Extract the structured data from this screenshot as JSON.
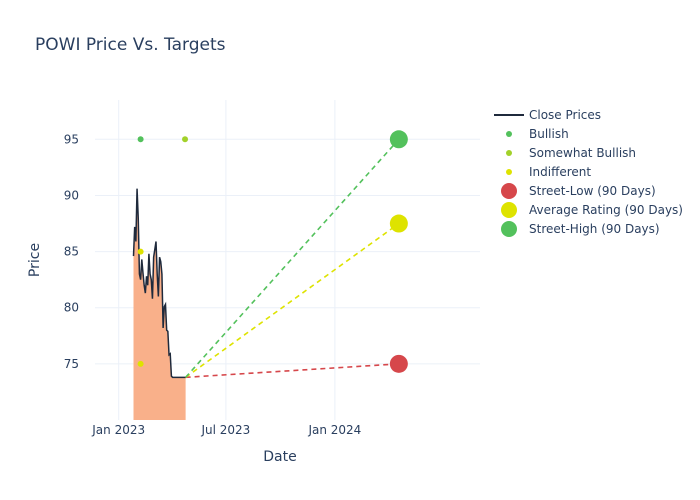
{
  "chart_data": {
    "type": "line",
    "title": "POWI Price Vs. Targets",
    "xlabel": "Date",
    "ylabel": "Price",
    "ylim": [
      70,
      98.5
    ],
    "xlim_days": [
      -40,
      610
    ],
    "x_origin": "2023-01-01",
    "yticks": [
      75,
      80,
      85,
      90,
      95
    ],
    "xticks": [
      {
        "day": 0,
        "label": "Jan 2023"
      },
      {
        "day": 181,
        "label": "Jul 2023"
      },
      {
        "day": 365,
        "label": "Jan 2024"
      }
    ],
    "grid": true,
    "legend_position": "top-right",
    "close_prices": {
      "name": "Close Prices",
      "color": "#1f2a3c",
      "fill_color": "#f9b08a",
      "days": [
        25,
        27,
        29,
        31,
        33,
        35,
        37,
        39,
        41,
        43,
        45,
        47,
        49,
        51,
        53,
        55,
        57,
        59,
        61,
        63,
        65,
        67,
        69,
        71,
        73,
        75,
        77,
        79,
        81,
        83,
        85,
        87,
        89,
        91,
        93,
        95,
        97,
        99,
        101,
        103,
        105,
        107,
        109,
        111,
        113
      ],
      "values": [
        84.6,
        87.2,
        85.9,
        90.6,
        88.0,
        83.0,
        82.5,
        84.3,
        83.1,
        82.0,
        81.3,
        82.8,
        82.0,
        84.8,
        83.0,
        82.5,
        80.8,
        84.5,
        85.2,
        85.9,
        83.0,
        81.0,
        84.5,
        84.1,
        83.0,
        78.2,
        80.1,
        80.3,
        78.0,
        77.9,
        75.8,
        75.9,
        73.9,
        73.8,
        73.8,
        73.8,
        73.8,
        73.8,
        73.8,
        73.8,
        73.8,
        73.8,
        73.8,
        73.8,
        73.8
      ]
    },
    "ratings": [
      {
        "name": "Bullish",
        "color": "#53c15c",
        "points": [
          {
            "day": 37,
            "value": 95
          }
        ]
      },
      {
        "name": "Somewhat Bullish",
        "color": "#a2d12a",
        "points": [
          {
            "day": 112,
            "value": 95
          }
        ]
      },
      {
        "name": "Indifferent",
        "color": "#dee300",
        "points": [
          {
            "day": 37,
            "value": 85
          },
          {
            "day": 37,
            "value": 75
          }
        ]
      }
    ],
    "targets": [
      {
        "name": "Street-Low (90 Days)",
        "color": "#d6474b",
        "value": 75,
        "day": 473
      },
      {
        "name": "Average Rating (90 Days)",
        "color": "#dee300",
        "value": 87.5,
        "day": 473
      },
      {
        "name": "Street-High (90 Days)",
        "color": "#53c15c",
        "value": 95,
        "day": 473
      }
    ],
    "projection_start": {
      "day": 113,
      "value": 73.8
    }
  }
}
